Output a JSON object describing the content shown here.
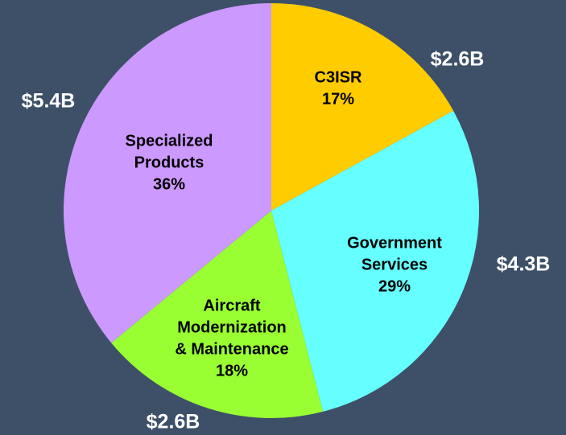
{
  "chart_data": {
    "type": "pie",
    "categories": [
      [
        "C3ISR"
      ],
      [
        "Government",
        "Services"
      ],
      [
        "Aircraft",
        "Modernization",
        "& Maintenance"
      ],
      [
        "Specialized",
        "Products"
      ]
    ],
    "values": [
      17,
      29,
      18,
      36
    ],
    "value_labels": [
      "17%",
      "29%",
      "18%",
      "36%"
    ],
    "outer_labels": [
      "$2.6B",
      "$4.3B",
      "$2.6B",
      "$5.4B"
    ],
    "colors": [
      "#ffcc00",
      "#66ffff",
      "#99ff33",
      "#cc99ff"
    ]
  }
}
